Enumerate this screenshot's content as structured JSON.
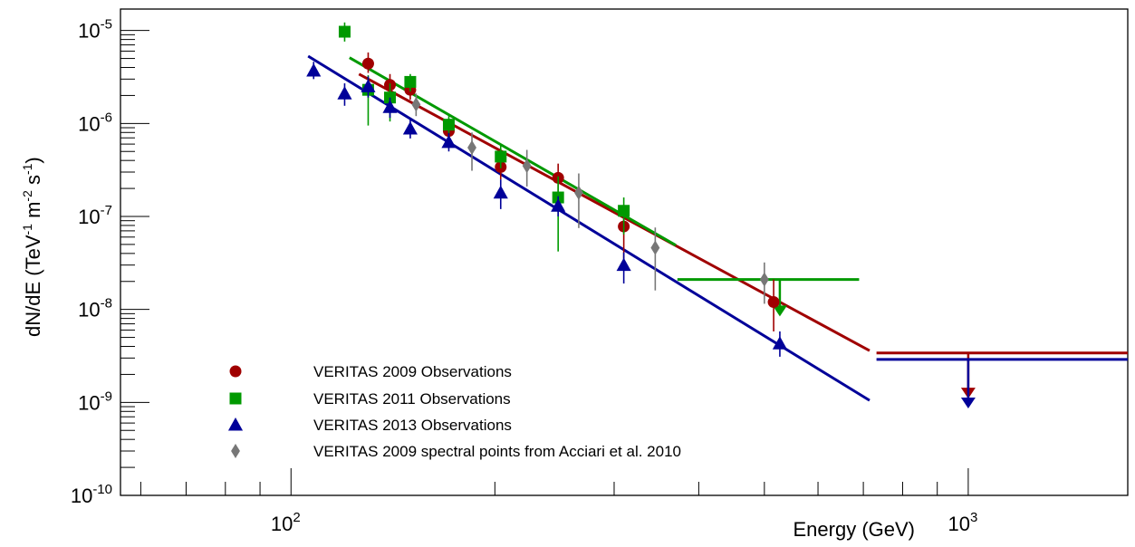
{
  "chart_data": {
    "type": "scatter",
    "title": "",
    "x_axis": {
      "label": "Energy (GeV)",
      "scale": "log",
      "range": [
        56,
        1720
      ],
      "major_ticks": [
        {
          "value": 100,
          "base": "10",
          "exp": "2"
        },
        {
          "value": 1000,
          "base": "10",
          "exp": "3"
        }
      ]
    },
    "y_axis": {
      "label_main": "dN/dE (TeV",
      "label_exp1": "-1",
      "label_mid": " m",
      "label_exp2": "-2",
      "label_mid2": " s",
      "label_exp3": "-1",
      "label_end": ")",
      "scale": "log",
      "range": [
        1e-10,
        1.7e-05
      ],
      "major_ticks": [
        {
          "value": 1e-10,
          "base": "10",
          "exp": "-10"
        },
        {
          "value": 1e-09,
          "base": "10",
          "exp": "-9"
        },
        {
          "value": 1e-08,
          "base": "10",
          "exp": "-8"
        },
        {
          "value": 1e-07,
          "base": "10",
          "exp": "-7"
        },
        {
          "value": 1e-06,
          "base": "10",
          "exp": "-6"
        },
        {
          "value": 1e-05,
          "base": "10",
          "exp": "-5"
        }
      ]
    },
    "legend": {
      "placement": "bottom-left",
      "entries": [
        {
          "label": "VERITAS 2009 Observations",
          "series": 0
        },
        {
          "label": "VERITAS 2011 Observations",
          "series": 1
        },
        {
          "label": "VERITAS 2013 Observations",
          "series": 2
        },
        {
          "label": "VERITAS 2009 spectral points from Acciari et al. 2010",
          "series": 3
        }
      ]
    },
    "series": [
      {
        "name": "VERITAS 2009 Observations",
        "color": "#a00000",
        "marker": "circle",
        "points": [
          {
            "x": 130,
            "y": 4.4e-06,
            "lo": 3.5e-06,
            "hi": 5.8e-06
          },
          {
            "x": 140,
            "y": 2.6e-06,
            "lo": 2.1e-06,
            "hi": 3.4e-06
          },
          {
            "x": 150,
            "y": 2.3e-06,
            "lo": 1.8e-06,
            "hi": 3e-06
          },
          {
            "x": 171,
            "y": 8.3e-07,
            "lo": 6.7e-07,
            "hi": 1e-06
          },
          {
            "x": 204,
            "y": 3.4e-07,
            "lo": 2.5e-07,
            "hi": 4.6e-07
          },
          {
            "x": 248,
            "y": 2.6e-07,
            "lo": 1.6e-07,
            "hi": 3.7e-07
          },
          {
            "x": 310,
            "y": 7.8e-08,
            "lo": 3.5e-08,
            "hi": 1.3e-07
          },
          {
            "x": 516,
            "y": 1.2e-08,
            "lo": 5.8e-09,
            "hi": 2.1e-08
          }
        ],
        "fit": {
          "x_start": 126,
          "y_start": 3.4e-06,
          "x_end": 715,
          "y_end": 3.6e-09
        },
        "upper_limit": {
          "x_from": 732,
          "x_to": 1720,
          "y": 3.4e-09,
          "arrow_x": 1000,
          "arrow_to_y": 1.15e-09
        }
      },
      {
        "name": "VERITAS 2011 Observations",
        "color": "#009900",
        "marker": "square",
        "points": [
          {
            "x": 120,
            "y": 9.7e-06,
            "lo": 7.6e-06,
            "hi": 1.22e-05
          },
          {
            "x": 130,
            "y": 2.3e-06,
            "lo": 9.5e-07,
            "hi": 3.3e-06
          },
          {
            "x": 140,
            "y": 1.9e-06,
            "lo": 1.05e-06,
            "hi": 2.7e-06
          },
          {
            "x": 150,
            "y": 2.8e-06,
            "lo": 2.2e-06,
            "hi": 3.4e-06
          },
          {
            "x": 171,
            "y": 9.7e-07,
            "lo": 7.8e-07,
            "hi": 1.2e-06
          },
          {
            "x": 204,
            "y": 4.4e-07,
            "lo": 3.3e-07,
            "hi": 5.8e-07
          },
          {
            "x": 248,
            "y": 1.6e-07,
            "lo": 4.2e-08,
            "hi": 2.7e-07
          },
          {
            "x": 310,
            "y": 1.15e-07,
            "lo": 6.4e-08,
            "hi": 1.6e-07
          }
        ],
        "fit": {
          "x_start": 122,
          "y_start": 5.1e-06,
          "x_end": 370,
          "y_end": 4.9e-08
        },
        "upper_limit": {
          "x_from": 372,
          "x_to": 690,
          "y": 2.1e-08,
          "arrow_x": 527,
          "arrow_to_y": 8.8e-09
        }
      },
      {
        "name": "VERITAS 2013 Observations",
        "color": "#000099",
        "marker": "triangle",
        "points": [
          {
            "x": 108,
            "y": 3.7e-06,
            "lo": 3e-06,
            "hi": 4.6e-06
          },
          {
            "x": 120,
            "y": 2.1e-06,
            "lo": 1.55e-06,
            "hi": 2.7e-06
          },
          {
            "x": 130,
            "y": 2.5e-06,
            "lo": 1.9e-06,
            "hi": 3.2e-06
          },
          {
            "x": 140,
            "y": 1.5e-06,
            "lo": 1.15e-06,
            "hi": 1.9e-06
          },
          {
            "x": 150,
            "y": 8.8e-07,
            "lo": 6.9e-07,
            "hi": 1.12e-06
          },
          {
            "x": 171,
            "y": 6.3e-07,
            "lo": 5e-07,
            "hi": 7.9e-07
          },
          {
            "x": 204,
            "y": 1.8e-07,
            "lo": 1.2e-07,
            "hi": 2.5e-07
          },
          {
            "x": 248,
            "y": 1.3e-07,
            "lo": 1e-07,
            "hi": 1.65e-07
          },
          {
            "x": 310,
            "y": 3e-08,
            "lo": 1.9e-08,
            "hi": 4.1e-08
          },
          {
            "x": 527,
            "y": 4.3e-09,
            "lo": 3.1e-09,
            "hi": 5.8e-09
          }
        ],
        "fit": {
          "x_start": 106,
          "y_start": 5.3e-06,
          "x_end": 715,
          "y_end": 1.05e-09
        },
        "upper_limit": {
          "x_from": 732,
          "x_to": 1720,
          "y": 2.9e-09,
          "arrow_x": 1000,
          "arrow_to_y": 9e-10
        }
      },
      {
        "name": "VERITAS 2009 spectral points from Acciari et al. 2010",
        "color": "#777777",
        "marker": "diamond",
        "points": [
          {
            "x": 153,
            "y": 1.6e-06,
            "lo": 1.2e-06,
            "hi": 2.1e-06
          },
          {
            "x": 185,
            "y": 5.5e-07,
            "lo": 3.1e-07,
            "hi": 8e-07
          },
          {
            "x": 223,
            "y": 3.5e-07,
            "lo": 2.1e-07,
            "hi": 5.2e-07
          },
          {
            "x": 266,
            "y": 1.8e-07,
            "lo": 7.5e-08,
            "hi": 2.9e-07
          },
          {
            "x": 345,
            "y": 4.6e-08,
            "lo": 1.6e-08,
            "hi": 7.6e-08
          },
          {
            "x": 500,
            "y": 2.1e-08,
            "lo": 1.15e-08,
            "hi": 3.2e-08
          }
        ]
      }
    ]
  }
}
